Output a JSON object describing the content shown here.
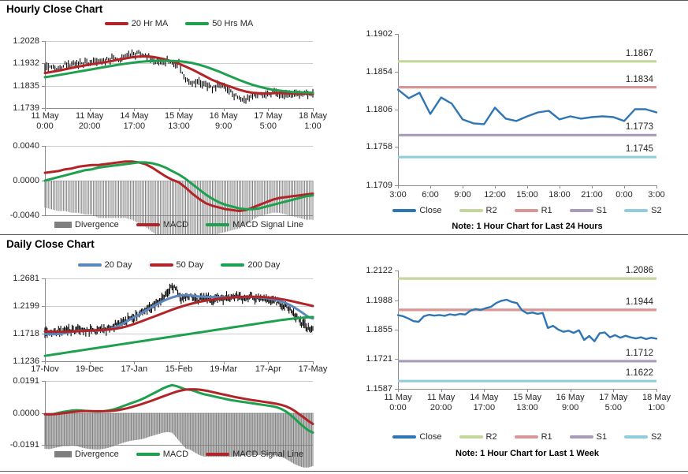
{
  "sections": {
    "hourly": {
      "title": "Hourly Close Chart"
    },
    "daily": {
      "title": "Daily Close Chart"
    }
  },
  "colors": {
    "candle": "#000000",
    "ma_red": "#B22428",
    "ma_green": "#1EA04E",
    "ma_blue": "#5B87BE",
    "close_blue": "#2E75B6",
    "r2": "#C3D69B",
    "r1": "#D99694",
    "s1": "#A79BB9",
    "s2": "#92CDDC",
    "divergence": "#7F7F7F",
    "grid": "#CCCCCC",
    "axis": "#8C8C8C"
  },
  "chart_data": [
    {
      "id": "hourly_price",
      "type": "candlestick+line",
      "title": "Hourly Close Chart",
      "y_ticks": [
        "1.2028",
        "1.1932",
        "1.1835",
        "1.1739"
      ],
      "x_labels": [
        [
          "11 May",
          "0:00"
        ],
        [
          "11 May",
          "20:00"
        ],
        [
          "14 May",
          "17:00"
        ],
        [
          "15 May",
          "13:00"
        ],
        [
          "16 May",
          "9:00"
        ],
        [
          "17 May",
          "5:00"
        ],
        [
          "18 May",
          "1:00"
        ]
      ],
      "legend_labels": [
        "20 Hr MA",
        "50 Hrs MA"
      ],
      "series": [
        {
          "name": "Close",
          "type": "candle",
          "color": "#000000",
          "legend": false,
          "values": [
            1.1915,
            1.192,
            1.191,
            1.1925,
            1.193,
            1.1928,
            1.1935,
            1.193,
            1.194,
            1.1945,
            1.1952,
            1.1948,
            1.196,
            1.1972,
            1.1975,
            1.1965,
            1.1945,
            1.1938,
            1.1942,
            1.1936,
            1.1932,
            1.186,
            1.1845,
            1.185,
            1.1838,
            1.1825,
            1.1842,
            1.183,
            1.18,
            1.1778,
            1.1768,
            1.179,
            1.1803,
            1.1795,
            1.1806,
            1.1798,
            1.1795,
            1.1802,
            1.1797,
            1.18,
            1.1798
          ]
        },
        {
          "name": "20 Hr MA",
          "type": "line",
          "color": "#B22428",
          "values": [
            1.189,
            1.1895,
            1.19,
            1.1906,
            1.1912,
            1.1918,
            1.1923,
            1.1928,
            1.1932,
            1.1937,
            1.1942,
            1.1948,
            1.1953,
            1.1958,
            1.1961,
            1.1962,
            1.196,
            1.1955,
            1.1948,
            1.194,
            1.193,
            1.1918,
            1.1905,
            1.189,
            1.1875,
            1.186,
            1.1848,
            1.1838,
            1.1828,
            1.1818,
            1.181,
            1.1805,
            1.1803,
            1.1802,
            1.1803,
            1.1804,
            1.1803,
            1.1802,
            1.1801,
            1.1801,
            1.18
          ]
        },
        {
          "name": "50 Hrs MA",
          "type": "line",
          "color": "#1EA04E",
          "values": [
            1.1872,
            1.1876,
            1.1881,
            1.1886,
            1.1891,
            1.1896,
            1.1901,
            1.1906,
            1.1911,
            1.1916,
            1.1921,
            1.1926,
            1.193,
            1.1934,
            1.1938,
            1.194,
            1.1942,
            1.1943,
            1.1943,
            1.1942,
            1.1941,
            1.1938,
            1.1933,
            1.1926,
            1.1917,
            1.1907,
            1.1896,
            1.1884,
            1.1872,
            1.186,
            1.1849,
            1.1839,
            1.1831,
            1.1824,
            1.1818,
            1.1814,
            1.1811,
            1.1808,
            1.1807,
            1.1806,
            1.1805
          ]
        }
      ]
    },
    {
      "id": "hourly_macd",
      "type": "macd",
      "y_ticks": [
        "0.0040",
        "0.0000",
        "-0.0040"
      ],
      "legend_labels": [
        "Divergence",
        "MACD",
        "MACD Signal Line"
      ],
      "series": [
        {
          "name": "Divergence",
          "type": "bar",
          "color": "#7F7F7F",
          "derived": "macd_minus_signal"
        },
        {
          "name": "MACD",
          "type": "line",
          "color": "#B22428",
          "values": [
            0.0009,
            0.001,
            0.0011,
            0.0013,
            0.0014,
            0.0016,
            0.0017,
            0.0018,
            0.0018,
            0.0019,
            0.002,
            0.0021,
            0.0022,
            0.0022,
            0.0021,
            0.0019,
            0.0015,
            0.001,
            0.0005,
            0.0001,
            -0.0002,
            -0.0008,
            -0.0015,
            -0.0021,
            -0.0026,
            -0.0029,
            -0.0031,
            -0.0033,
            -0.0034,
            -0.0035,
            -0.0034,
            -0.0031,
            -0.0028,
            -0.0025,
            -0.0022,
            -0.002,
            -0.0019,
            -0.0018,
            -0.0017,
            -0.0016,
            -0.0015
          ]
        },
        {
          "name": "MACD Signal Line",
          "type": "line",
          "color": "#1EA04E",
          "values": [
            0.0,
            0.0002,
            0.0004,
            0.0006,
            0.0008,
            0.001,
            0.0012,
            0.0013,
            0.0015,
            0.0016,
            0.0017,
            0.0018,
            0.0019,
            0.002,
            0.0021,
            0.0021,
            0.002,
            0.0018,
            0.0015,
            0.0011,
            0.0007,
            0.0002,
            -0.0004,
            -0.001,
            -0.0016,
            -0.0021,
            -0.0025,
            -0.0028,
            -0.003,
            -0.0032,
            -0.0033,
            -0.0033,
            -0.0032,
            -0.003,
            -0.0028,
            -0.0026,
            -0.0024,
            -0.0022,
            -0.002,
            -0.0018,
            -0.0017
          ]
        }
      ]
    },
    {
      "id": "hourly_pivot",
      "type": "line",
      "note": "Note: 1 Hour Chart for Last 24 Hours",
      "y_ticks": [
        "1.1902",
        "1.1854",
        "1.1806",
        "1.1758",
        "1.1709"
      ],
      "x_labels": [
        "3:00",
        "6:00",
        "9:00",
        "12:00",
        "15:00",
        "18:00",
        "21:00",
        "0:00",
        "3:00"
      ],
      "legend_labels": [
        "Close",
        "R2",
        "R1",
        "S1",
        "S2"
      ],
      "series": [
        {
          "name": "Close",
          "type": "line",
          "color": "#2E75B6",
          "values": [
            1.1831,
            1.182,
            1.1827,
            1.18,
            1.1821,
            1.1813,
            1.1793,
            1.1788,
            1.1787,
            1.1808,
            1.1794,
            1.1791,
            1.1797,
            1.1802,
            1.1804,
            1.1793,
            1.1797,
            1.1794,
            1.1796,
            1.1797,
            1.1796,
            1.1791,
            1.1806,
            1.1806,
            1.1802
          ]
        }
      ],
      "levels": [
        {
          "name": "R2",
          "value": 1.1867,
          "label": "1.1867",
          "color": "#C3D69B"
        },
        {
          "name": "R1",
          "value": 1.1834,
          "label": "1.1834",
          "color": "#D99694"
        },
        {
          "name": "S1",
          "value": 1.1773,
          "label": "1.1773",
          "color": "#A79BB9"
        },
        {
          "name": "S2",
          "value": 1.1745,
          "label": "1.1745",
          "color": "#92CDDC"
        }
      ]
    },
    {
      "id": "daily_price",
      "type": "candlestick+line",
      "title": "Daily Close Chart",
      "y_ticks": [
        "1.2681",
        "1.2199",
        "1.1718",
        "1.1236"
      ],
      "x_labels": [
        "17-Nov",
        "19-Dec",
        "17-Jan",
        "15-Feb",
        "19-Mar",
        "17-Apr",
        "17-May"
      ],
      "legend_labels": [
        "20 Day",
        "50 Day",
        "200 Day"
      ],
      "series": [
        {
          "name": "Close",
          "type": "candle",
          "color": "#000000",
          "legend": false,
          "values": [
            1.175,
            1.1738,
            1.176,
            1.1775,
            1.1768,
            1.178,
            1.1772,
            1.1765,
            1.1775,
            1.177,
            1.1778,
            1.1772,
            1.178,
            1.179,
            1.181,
            1.184,
            1.188,
            1.192,
            1.196,
            1.2,
            1.204,
            1.208,
            1.212,
            1.216,
            1.22,
            1.228,
            1.235,
            1.244,
            1.254,
            1.248,
            1.228,
            1.235,
            1.24,
            1.233,
            1.23,
            1.236,
            1.233,
            1.229,
            1.234,
            1.231,
            1.235,
            1.233,
            1.236,
            1.234,
            1.232,
            1.2345,
            1.233,
            1.235,
            1.234,
            1.233,
            1.231,
            1.228,
            1.223,
            1.218,
            1.212,
            1.205,
            1.196,
            1.188,
            1.182,
            1.18
          ]
        },
        {
          "name": "20 Day",
          "type": "line",
          "color": "#5B87BE",
          "values": [
            1.171,
            1.1708,
            1.1706,
            1.171,
            1.172,
            1.1735,
            1.175,
            1.1762,
            1.177,
            1.1772,
            1.1772,
            1.177,
            1.1772,
            1.1778,
            1.179,
            1.1812,
            1.1845,
            1.1885,
            1.193,
            1.1975,
            1.202,
            1.2065,
            1.211,
            1.2155,
            1.22,
            1.2245,
            1.2285,
            1.232,
            1.235,
            1.2372,
            1.2385,
            1.239,
            1.2385,
            1.2375,
            1.2365,
            1.236,
            1.2358,
            1.2356,
            1.2354,
            1.2352,
            1.235,
            1.235,
            1.2352,
            1.2355,
            1.2358,
            1.236,
            1.2358,
            1.2352,
            1.2345,
            1.2335,
            1.2322,
            1.2305,
            1.2282,
            1.2252,
            1.2215,
            1.217,
            1.212,
            1.2065,
            1.201,
            1.198
          ]
        },
        {
          "name": "50 Day",
          "type": "line",
          "color": "#B22428",
          "values": [
            1.1758,
            1.1755,
            1.1752,
            1.175,
            1.175,
            1.1752,
            1.1755,
            1.1758,
            1.1762,
            1.1766,
            1.177,
            1.1774,
            1.1778,
            1.1782,
            1.1788,
            1.1796,
            1.1808,
            1.1824,
            1.1844,
            1.1868,
            1.1895,
            1.1924,
            1.1954,
            1.1984,
            1.2014,
            1.2044,
            1.2074,
            1.2104,
            1.2134,
            1.2162,
            1.2188,
            1.2212,
            1.2234,
            1.2254,
            1.2272,
            1.2288,
            1.2302,
            1.2314,
            1.2324,
            1.2332,
            1.234,
            1.2346,
            1.2352,
            1.2356,
            1.236,
            1.2362,
            1.2362,
            1.236,
            1.2356,
            1.235,
            1.2342,
            1.2332,
            1.232,
            1.2306,
            1.229,
            1.2272,
            1.2254,
            1.2236,
            1.2218,
            1.22
          ]
        },
        {
          "name": "200 Day",
          "type": "line",
          "color": "#1EA04E",
          "values": [
            1.133,
            1.1342,
            1.1354,
            1.1366,
            1.1378,
            1.139,
            1.1402,
            1.1414,
            1.1426,
            1.1438,
            1.145,
            1.1462,
            1.1474,
            1.1486,
            1.1498,
            1.151,
            1.1522,
            1.1534,
            1.1546,
            1.1558,
            1.157,
            1.1582,
            1.1594,
            1.1606,
            1.1618,
            1.163,
            1.1642,
            1.1654,
            1.1666,
            1.1678,
            1.169,
            1.1702,
            1.1714,
            1.1726,
            1.1738,
            1.175,
            1.1762,
            1.1774,
            1.1786,
            1.1798,
            1.181,
            1.1822,
            1.1834,
            1.1846,
            1.1858,
            1.187,
            1.1882,
            1.1894,
            1.1906,
            1.1918,
            1.193,
            1.1942,
            1.1954,
            1.1964,
            1.1974,
            1.1982,
            1.199,
            1.1996,
            1.2002,
            1.2006
          ]
        }
      ]
    },
    {
      "id": "daily_macd",
      "type": "macd",
      "y_ticks": [
        "0.0191",
        "0.0000",
        "-0.0191"
      ],
      "legend_labels": [
        "Divergence",
        "MACD",
        "MACD Signal Line"
      ],
      "series": [
        {
          "name": "Divergence",
          "type": "bar",
          "color": "#7F7F7F",
          "derived": "macd_minus_signal"
        },
        {
          "name": "MACD",
          "type": "line",
          "color": "#1EA04E",
          "values": [
            -0.0008,
            -0.001,
            -0.0006,
            0.0,
            0.0006,
            0.001,
            0.0014,
            0.0016,
            0.0014,
            0.0012,
            0.001,
            0.0008,
            0.0008,
            0.001,
            0.0014,
            0.002,
            0.0028,
            0.0038,
            0.0048,
            0.0058,
            0.0068,
            0.0078,
            0.009,
            0.0104,
            0.0118,
            0.0132,
            0.0146,
            0.0158,
            0.0166,
            0.016,
            0.015,
            0.014,
            0.0138,
            0.013,
            0.012,
            0.0112,
            0.0106,
            0.01,
            0.0094,
            0.0088,
            0.0082,
            0.0076,
            0.0072,
            0.0068,
            0.0064,
            0.006,
            0.0056,
            0.0052,
            0.0048,
            0.0044,
            0.004,
            0.0034,
            0.0024,
            0.001,
            -0.001,
            -0.0034,
            -0.006,
            -0.0084,
            -0.0104,
            -0.0118
          ]
        },
        {
          "name": "MACD Signal Line",
          "type": "line",
          "color": "#B22428",
          "values": [
            -0.0008,
            -0.0009,
            -0.0008,
            -0.0005,
            -0.0002,
            0.0002,
            0.0005,
            0.0008,
            0.001,
            0.0011,
            0.0011,
            0.001,
            0.001,
            0.001,
            0.0011,
            0.0013,
            0.0016,
            0.0021,
            0.0027,
            0.0034,
            0.0042,
            0.005,
            0.0059,
            0.0068,
            0.0078,
            0.0088,
            0.0098,
            0.0108,
            0.0118,
            0.0127,
            0.0134,
            0.0139,
            0.0141,
            0.0141,
            0.0139,
            0.0135,
            0.013,
            0.0124,
            0.0118,
            0.0112,
            0.0106,
            0.01,
            0.0094,
            0.0089,
            0.0084,
            0.0079,
            0.0075,
            0.0071,
            0.0067,
            0.0063,
            0.0059,
            0.0054,
            0.0048,
            0.004,
            0.0028,
            0.0012,
            -0.0008,
            -0.0028,
            -0.0048,
            -0.0066
          ]
        }
      ]
    },
    {
      "id": "daily_pivot",
      "type": "line",
      "note": "Note: 1 Hour Chart for Last 1 Week",
      "y_ticks": [
        "1.2122",
        "1.1988",
        "1.1855",
        "1.1721",
        "1.1587"
      ],
      "x_labels": [
        [
          "11 May",
          "0:00"
        ],
        [
          "11 May",
          "20:00"
        ],
        [
          "14 May",
          "17:00"
        ],
        [
          "15 May",
          "13:00"
        ],
        [
          "16 May",
          "9:00"
        ],
        [
          "17 May",
          "5:00"
        ],
        [
          "18 May",
          "1:00"
        ]
      ],
      "legend_labels": [
        "Close",
        "R2",
        "R1",
        "S1",
        "S2"
      ],
      "series": [
        {
          "name": "Close",
          "type": "line",
          "color": "#2E75B6",
          "values": [
            1.192,
            1.1915,
            1.1905,
            1.1893,
            1.189,
            1.1915,
            1.1922,
            1.1918,
            1.1921,
            1.1917,
            1.1924,
            1.192,
            1.1926,
            1.1923,
            1.194,
            1.1948,
            1.1944,
            1.1952,
            1.1958,
            1.1975,
            1.1985,
            1.199,
            1.198,
            1.1975,
            1.1942,
            1.1928,
            1.1932,
            1.1926,
            1.193,
            1.1862,
            1.1872,
            1.1855,
            1.1845,
            1.185,
            1.184,
            1.1852,
            1.1808,
            1.1826,
            1.1802,
            1.1838,
            1.1842,
            1.182,
            1.183,
            1.1818,
            1.1827,
            1.182,
            1.1815,
            1.182,
            1.1812,
            1.1818,
            1.1814
          ]
        }
      ],
      "levels": [
        {
          "name": "R2",
          "value": 1.2086,
          "label": "1.2086",
          "color": "#C3D69B"
        },
        {
          "name": "R1",
          "value": 1.1944,
          "label": "1.1944",
          "color": "#D99694"
        },
        {
          "name": "S1",
          "value": 1.1712,
          "label": "1.1712",
          "color": "#A79BB9"
        },
        {
          "name": "S2",
          "value": 1.1622,
          "label": "1.1622",
          "color": "#92CDDC"
        }
      ]
    }
  ]
}
